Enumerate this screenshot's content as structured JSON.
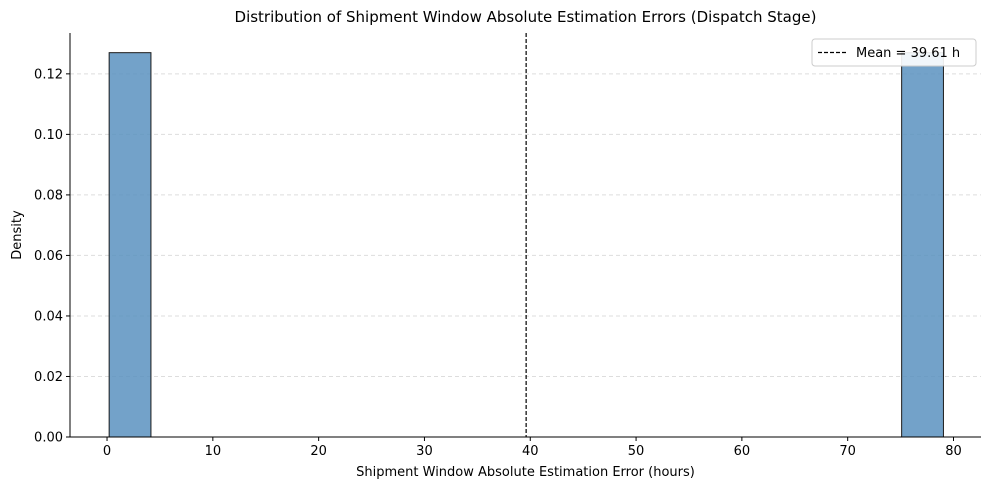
{
  "chart_data": {
    "type": "bar",
    "subtype": "histogram",
    "title": "Distribution of Shipment Window Absolute Estimation Errors (Dispatch Stage)",
    "xlabel": "Shipment Window Absolute Estimation Error (hours)",
    "ylabel": "Density",
    "xlim": [
      -3.5,
      82.6
    ],
    "ylim": [
      0,
      0.1335
    ],
    "xticks": [
      0,
      10,
      20,
      30,
      40,
      50,
      60,
      70,
      80
    ],
    "yticks": [
      0.0,
      0.02,
      0.04,
      0.06,
      0.08,
      0.1,
      0.12
    ],
    "ytick_labels": [
      "0.00",
      "0.02",
      "0.04",
      "0.06",
      "0.08",
      "0.10",
      "0.12"
    ],
    "grid": "y-dashed",
    "bins": [
      {
        "x0": 0.2,
        "x1": 4.15,
        "density": 0.127
      },
      {
        "x0": 75.1,
        "x1": 79.05,
        "density": 0.127
      }
    ],
    "mean_line": {
      "value": 39.61,
      "label": "Mean = 39.61 h"
    },
    "legend_position": "top-right",
    "colors": {
      "bar_fill": "#5b92c0",
      "bar_edge": "#1a1a1a",
      "grid": "#dddddd",
      "mean_line": "#000000"
    }
  }
}
